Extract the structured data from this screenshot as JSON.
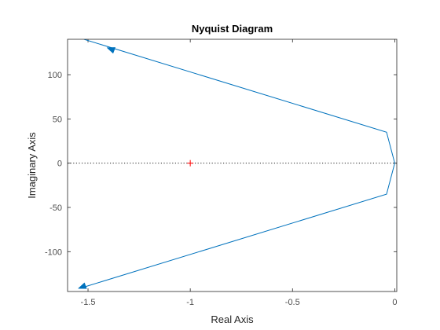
{
  "chart_data": {
    "type": "line",
    "title": "Nyquist Diagram",
    "xlabel": "Real Axis",
    "ylabel": "Imaginary Axis",
    "xlim": [
      -1.6,
      0.01
    ],
    "ylim": [
      -145,
      140
    ],
    "xticks": [
      -1.5,
      -1,
      -0.5,
      0
    ],
    "xtick_labels": [
      "-1.5",
      "-1",
      "-0.5",
      "0"
    ],
    "yticks": [
      -100,
      -50,
      0,
      50,
      100
    ],
    "ytick_labels": [
      "-100",
      "-50",
      "0",
      "50",
      "100"
    ],
    "grid": false,
    "series": [
      {
        "color": "#0072bd",
        "x": [
          -1.52,
          -0.04,
          0.0,
          -0.04,
          -1.52
        ],
        "y": [
          140,
          35,
          0,
          -35,
          -140
        ]
      }
    ],
    "arrows": [
      {
        "x": -1.39,
        "y": 129,
        "direction": "up-left"
      },
      {
        "x": -1.53,
        "y": -140,
        "direction": "down-left"
      }
    ],
    "zero_line": {
      "y": 0,
      "style": "dotted",
      "color": "#000000"
    },
    "critical_point": {
      "x": -1,
      "y": 0,
      "marker": "+",
      "color": "#ff0000"
    }
  }
}
